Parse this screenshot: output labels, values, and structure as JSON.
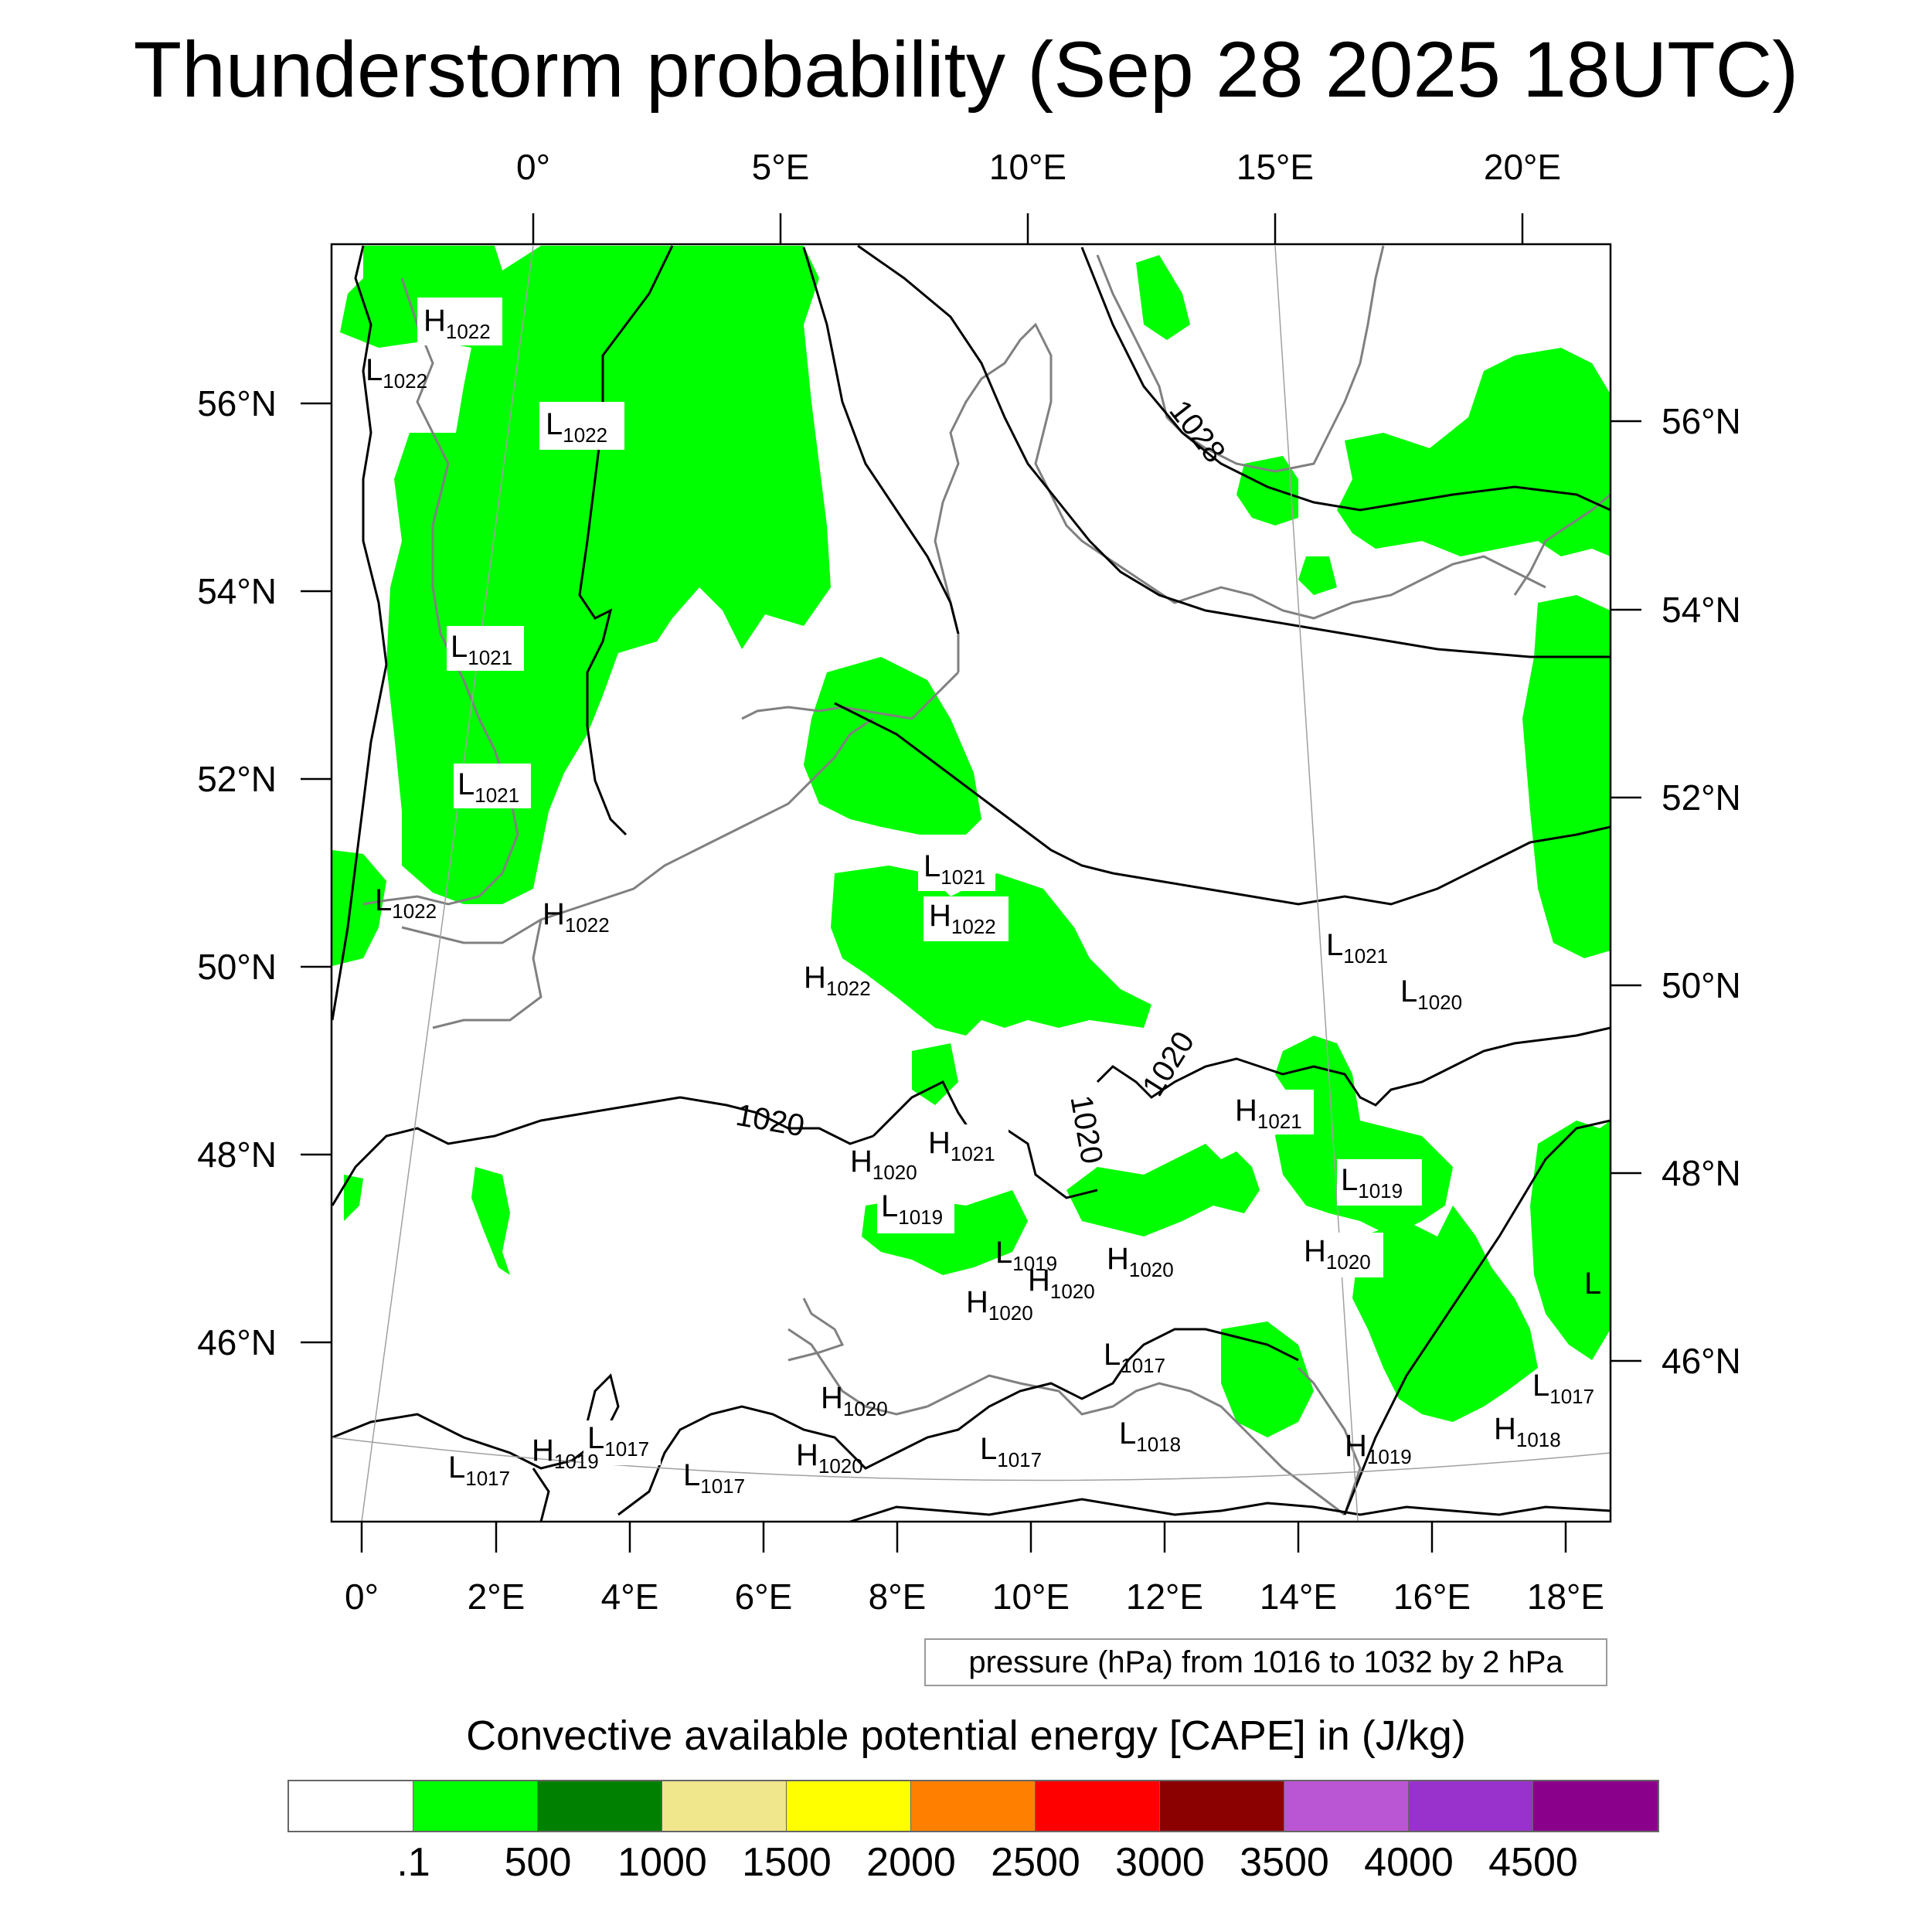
{
  "title": "Thunderstorm probability (Sep 28 2025 18UTC)",
  "top_axis_labels": [
    "0°",
    "5°E",
    "10°E",
    "15°E",
    "20°E"
  ],
  "left_axis_labels": [
    "56°N",
    "54°N",
    "52°N",
    "50°N",
    "48°N",
    "46°N"
  ],
  "right_axis_labels": [
    "56°N",
    "54°N",
    "52°N",
    "50°N",
    "48°N",
    "46°N"
  ],
  "bottom_axis_labels": [
    "0°",
    "2°E",
    "4°E",
    "6°E",
    "8°E",
    "10°E",
    "12°E",
    "14°E",
    "16°E",
    "18°E"
  ],
  "contour_info": "pressure (hPa) from 1016 to 1032 by 2 hPa",
  "isobar_labels": [
    "1028",
    "1020",
    "1020",
    "1020"
  ],
  "pressure_systems": [
    {
      "type": "H",
      "value": "1022"
    },
    {
      "type": "L",
      "value": "1022"
    },
    {
      "type": "L",
      "value": "1022"
    },
    {
      "type": "L",
      "value": "1021"
    },
    {
      "type": "L",
      "value": "1021"
    },
    {
      "type": "L",
      "value": "1022"
    },
    {
      "type": "H",
      "value": "1022"
    },
    {
      "type": "L",
      "value": "1021"
    },
    {
      "type": "H",
      "value": "1022"
    },
    {
      "type": "H",
      "value": "1022"
    },
    {
      "type": "L",
      "value": "1021"
    },
    {
      "type": "L",
      "value": "1020"
    },
    {
      "type": "H",
      "value": "1021"
    },
    {
      "type": "H",
      "value": "1021"
    },
    {
      "type": "H",
      "value": "1020"
    },
    {
      "type": "L",
      "value": "1019"
    },
    {
      "type": "L",
      "value": "1019"
    },
    {
      "type": "L",
      "value": "1019"
    },
    {
      "type": "H",
      "value": "1020"
    },
    {
      "type": "H",
      "value": "1020"
    },
    {
      "type": "H",
      "value": "1020"
    },
    {
      "type": "H",
      "value": "1020"
    },
    {
      "type": "L",
      "value": "1017"
    },
    {
      "type": "L",
      "value": "1017"
    },
    {
      "type": "H",
      "value": "1020"
    },
    {
      "type": "H",
      "value": "1018"
    },
    {
      "type": "L",
      "value": "1017"
    },
    {
      "type": "H",
      "value": "1019"
    },
    {
      "type": "L",
      "value": "1017"
    },
    {
      "type": "L",
      "value": "1017"
    },
    {
      "type": "H",
      "value": "1020"
    },
    {
      "type": "L",
      "value": "1017"
    },
    {
      "type": "L",
      "value": "1018"
    },
    {
      "type": "H",
      "value": "1019"
    },
    {
      "type": "L",
      "value": ""
    }
  ],
  "colorbar": {
    "title": "Convective available potential energy [CAPE] in (J/kg)",
    "colors": [
      "#ffffff",
      "#00ff00",
      "#008000",
      "#f0e68c",
      "#ffff00",
      "#ff8000",
      "#ff0000",
      "#8b0000",
      "#ba55d3",
      "#9932cc",
      "#8b008b"
    ],
    "tick_labels": [
      ".1",
      "500",
      "1000",
      "1500",
      "2000",
      "2500",
      "3000",
      "3500",
      "4000",
      "4500"
    ]
  },
  "styles": {
    "cape_fill": "#00ff00",
    "isobar_color": "#000000",
    "coastline_color": "#808080",
    "graticule_color": "#a0a0a0"
  }
}
